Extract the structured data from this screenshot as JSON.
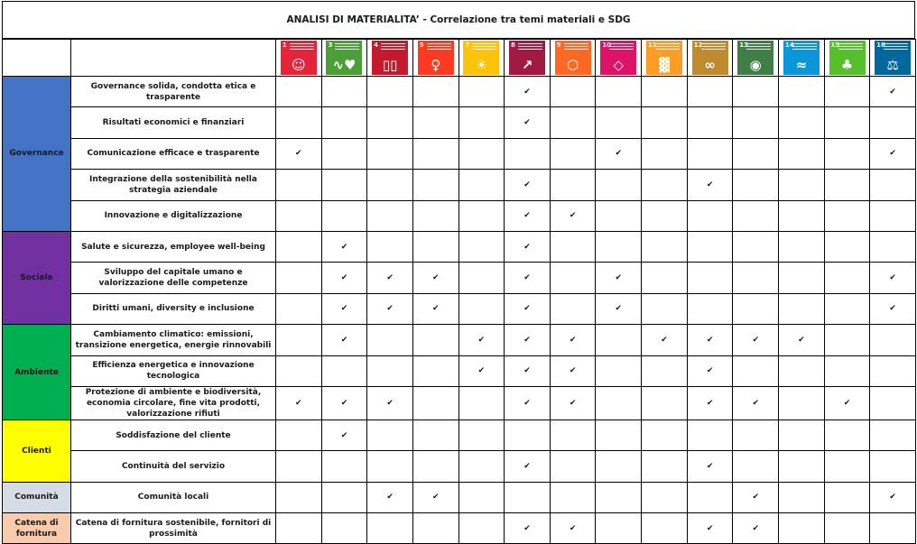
{
  "title": "ANALISI DI MATERIALITA’ - Correlazione tra temi materiali e SDG",
  "check_glyph": "✔",
  "sdgs": [
    {
      "num": "1",
      "color": "#E5243B",
      "icon": "people-icon",
      "glyph": "☺"
    },
    {
      "num": "3",
      "color": "#4C9F38",
      "icon": "heartbeat-icon",
      "glyph": "∿♥"
    },
    {
      "num": "4",
      "color": "#C5192D",
      "icon": "book-icon",
      "glyph": "▯▯"
    },
    {
      "num": "5",
      "color": "#FF3A21",
      "icon": "gender-icon",
      "glyph": "♀"
    },
    {
      "num": "7",
      "color": "#FCC30B",
      "icon": "sun-icon",
      "glyph": "☀"
    },
    {
      "num": "8",
      "color": "#A21942",
      "icon": "growth-chart-icon",
      "glyph": "↗"
    },
    {
      "num": "9",
      "color": "#FD6925",
      "icon": "cubes-icon",
      "glyph": "⬡"
    },
    {
      "num": "10",
      "color": "#DD1367",
      "icon": "equality-icon",
      "glyph": "◇"
    },
    {
      "num": "11",
      "color": "#FD9D24",
      "icon": "city-icon",
      "glyph": "▓"
    },
    {
      "num": "12",
      "color": "#BF8B2E",
      "icon": "infinity-icon",
      "glyph": "∞"
    },
    {
      "num": "13",
      "color": "#3F7E44",
      "icon": "eye-icon",
      "glyph": "◉"
    },
    {
      "num": "14",
      "color": "#0A97D9",
      "icon": "fish-icon",
      "glyph": "≈"
    },
    {
      "num": "15",
      "color": "#56C02B",
      "icon": "tree-icon",
      "glyph": "♣"
    },
    {
      "num": "16",
      "color": "#00689D",
      "icon": "dove-icon",
      "glyph": "⚖"
    }
  ],
  "categories": [
    {
      "name": "Governance",
      "color": "#4472C4",
      "themes": [
        {
          "label": "Governance solida, condotta etica e trasparente",
          "checks": [
            "8",
            "16"
          ]
        },
        {
          "label": "Risultati economici e finanziari",
          "checks": [
            "8"
          ]
        },
        {
          "label": "Comunicazione efficace e trasparente",
          "checks": [
            "1",
            "10",
            "16"
          ]
        },
        {
          "label": "Integrazione della sostenibilità nella strategia aziendale",
          "checks": [
            "8",
            "12"
          ]
        },
        {
          "label": "Innovazione e digitalizzazione",
          "checks": [
            "8",
            "9"
          ]
        }
      ]
    },
    {
      "name": "Sociale",
      "color": "#7030A0",
      "themes": [
        {
          "label": "Salute e sicurezza, employee well-being",
          "checks": [
            "3",
            "8"
          ]
        },
        {
          "label": "Sviluppo del capitale umano e valorizzazione delle competenze",
          "checks": [
            "3",
            "4",
            "5",
            "8",
            "10",
            "16"
          ]
        },
        {
          "label": "Diritti umani, diversity e inclusione",
          "checks": [
            "3",
            "4",
            "5",
            "8",
            "10",
            "16"
          ]
        }
      ]
    },
    {
      "name": "Ambiente",
      "color": "#00B050",
      "themes": [
        {
          "label": "Cambiamento climatico: emissioni, transizione energetica, energie rinnovabili",
          "checks": [
            "3",
            "7",
            "8",
            "9",
            "11",
            "12",
            "13",
            "14"
          ]
        },
        {
          "label": "Efficienza energetica e innovazione tecnologica",
          "checks": [
            "7",
            "8",
            "9",
            "12"
          ]
        },
        {
          "label": "Protezione di ambiente e biodiversità, economia circolare, fine vita prodotti, valorizzazione rifiuti",
          "checks": [
            "1",
            "3",
            "4",
            "8",
            "9",
            "12",
            "13",
            "15"
          ]
        }
      ]
    },
    {
      "name": "Clienti",
      "color": "#FFFF00",
      "themes": [
        {
          "label": "Soddisfazione del cliente",
          "checks": [
            "3"
          ]
        },
        {
          "label": "Continuità del servizio",
          "checks": [
            "8",
            "12"
          ]
        }
      ]
    },
    {
      "name": "Comunità",
      "color": "#D6DCE4",
      "themes": [
        {
          "label": "Comunità locali",
          "checks": [
            "4",
            "5",
            "13",
            "16"
          ]
        }
      ]
    },
    {
      "name": "Catena di fornitura",
      "color": "#F8CBAD",
      "themes": [
        {
          "label": "Catena di fornitura sostenibile, fornitori di prossimità",
          "checks": [
            "8",
            "9",
            "12",
            "13"
          ]
        }
      ]
    }
  ]
}
